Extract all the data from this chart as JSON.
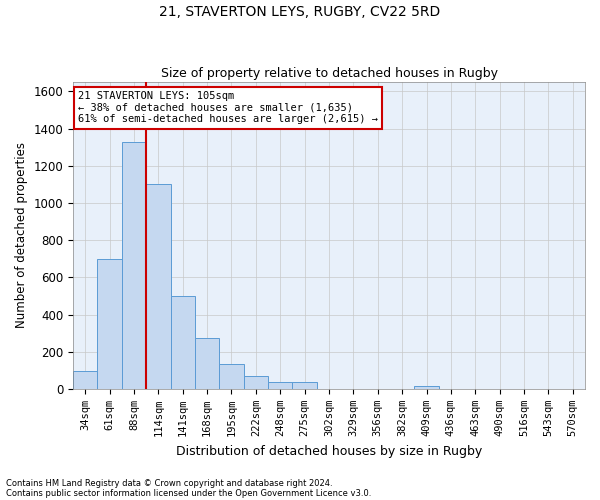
{
  "title": "21, STAVERTON LEYS, RUGBY, CV22 5RD",
  "subtitle": "Size of property relative to detached houses in Rugby",
  "xlabel": "Distribution of detached houses by size in Rugby",
  "ylabel": "Number of detached properties",
  "footnote1": "Contains HM Land Registry data © Crown copyright and database right 2024.",
  "footnote2": "Contains public sector information licensed under the Open Government Licence v3.0.",
  "categories": [
    "34sqm",
    "61sqm",
    "88sqm",
    "114sqm",
    "141sqm",
    "168sqm",
    "195sqm",
    "222sqm",
    "248sqm",
    "275sqm",
    "302sqm",
    "329sqm",
    "356sqm",
    "382sqm",
    "409sqm",
    "436sqm",
    "463sqm",
    "490sqm",
    "516sqm",
    "543sqm",
    "570sqm"
  ],
  "values": [
    95,
    700,
    1330,
    1100,
    500,
    275,
    135,
    70,
    35,
    35,
    0,
    0,
    0,
    0,
    15,
    0,
    0,
    0,
    0,
    0,
    0
  ],
  "bar_color": "#c5d8f0",
  "bar_edge_color": "#5b9bd5",
  "grid_color": "#c8c8c8",
  "background_color": "#e8f0fa",
  "annotation_text": "21 STAVERTON LEYS: 105sqm\n← 38% of detached houses are smaller (1,635)\n61% of semi-detached houses are larger (2,615) →",
  "annotation_box_color": "#ffffff",
  "annotation_box_edge": "#cc0000",
  "red_line_color": "#cc0000",
  "ylim": [
    0,
    1650
  ],
  "yticks": [
    0,
    200,
    400,
    600,
    800,
    1000,
    1200,
    1400,
    1600
  ]
}
